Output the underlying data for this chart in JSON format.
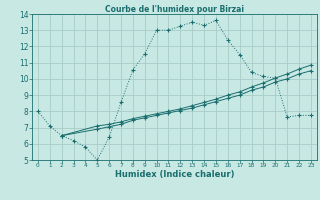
{
  "title": "Courbe de l'humidex pour Birzai",
  "xlabel": "Humidex (Indice chaleur)",
  "xlim": [
    -0.5,
    23.5
  ],
  "ylim": [
    5,
    14
  ],
  "yticks": [
    5,
    6,
    7,
    8,
    9,
    10,
    11,
    12,
    13,
    14
  ],
  "xticks": [
    0,
    1,
    2,
    3,
    4,
    5,
    6,
    7,
    8,
    9,
    10,
    11,
    12,
    13,
    14,
    15,
    16,
    17,
    18,
    19,
    20,
    21,
    22,
    23
  ],
  "bg_color": "#c8e8e4",
  "grid_color": "#a8ccc8",
  "line_color": "#1a6e6e",
  "line1_x": [
    0,
    1,
    2,
    3,
    4,
    5,
    6,
    7,
    8,
    9,
    10,
    11,
    12,
    13,
    14,
    15,
    16,
    17,
    18,
    19,
    20,
    21,
    22,
    23
  ],
  "line1_y": [
    8.0,
    7.1,
    6.5,
    6.2,
    5.8,
    5.0,
    6.4,
    8.55,
    10.55,
    11.55,
    13.0,
    13.0,
    13.25,
    13.5,
    13.3,
    13.6,
    12.4,
    11.5,
    10.4,
    10.15,
    10.05,
    7.65,
    7.75,
    7.75
  ],
  "line2_x": [
    2,
    5,
    6,
    7,
    8,
    9,
    10,
    11,
    12,
    13,
    14,
    15,
    16,
    17,
    18,
    19,
    20,
    21,
    22,
    23
  ],
  "line2_y": [
    6.5,
    6.9,
    7.05,
    7.2,
    7.45,
    7.6,
    7.75,
    7.9,
    8.05,
    8.2,
    8.4,
    8.6,
    8.8,
    9.0,
    9.3,
    9.5,
    9.8,
    10.0,
    10.3,
    10.5
  ],
  "line3_x": [
    2,
    5,
    6,
    7,
    8,
    9,
    10,
    11,
    12,
    13,
    14,
    15,
    16,
    17,
    18,
    19,
    20,
    21,
    22,
    23
  ],
  "line3_y": [
    6.5,
    7.1,
    7.2,
    7.35,
    7.55,
    7.7,
    7.85,
    8.0,
    8.15,
    8.35,
    8.55,
    8.75,
    9.0,
    9.2,
    9.5,
    9.75,
    10.05,
    10.3,
    10.6,
    10.85
  ]
}
